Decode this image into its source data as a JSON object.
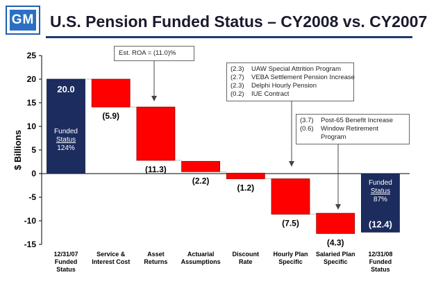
{
  "logo_text": "GM",
  "title": "U.S. Pension Funded Status – CY2008 vs. CY2007",
  "chart_data": {
    "type": "bar",
    "subtype": "waterfall",
    "ylabel": "$ Billions",
    "ylim": [
      -15,
      25
    ],
    "yticks": [
      25,
      20,
      15,
      10,
      5,
      0,
      -5,
      -10,
      -15
    ],
    "grid": false,
    "colors": {
      "total": "#1c2c5e",
      "step": "#ff0000"
    },
    "categories": [
      [
        "12/31/07",
        "Funded",
        "Status"
      ],
      [
        "Service &",
        "Interest Cost"
      ],
      [
        "Asset",
        "Returns"
      ],
      [
        "Actuarial",
        "Assumptions"
      ],
      [
        "Discount",
        "Rate"
      ],
      [
        "Hourly Plan",
        "Specific"
      ],
      [
        "Salaried Plan",
        "Specific"
      ],
      [
        "12/31/08",
        "Funded",
        "Status"
      ]
    ],
    "bars": [
      {
        "kind": "total",
        "start": 0,
        "end": 20.0,
        "label": "20.0",
        "inner_text": [
          "Funded",
          "Status",
          "124%"
        ]
      },
      {
        "kind": "step",
        "start": 20.0,
        "end": 14.1,
        "label": "(5.9)"
      },
      {
        "kind": "step",
        "start": 14.1,
        "end": 2.8,
        "label": "(11.3)"
      },
      {
        "kind": "step",
        "start": 2.6,
        "end": 0.4,
        "label": "(2.2)"
      },
      {
        "kind": "step",
        "start": 0.1,
        "end": -1.1,
        "label": "(1.2)"
      },
      {
        "kind": "step",
        "start": -1.1,
        "end": -8.6,
        "label": "(7.5)"
      },
      {
        "kind": "step",
        "start": -8.4,
        "end": -12.7,
        "label": "(4.3)"
      },
      {
        "kind": "total",
        "start": 0,
        "end": -12.4,
        "label": "(12.4)",
        "inner_text": [
          "Funded",
          "Status",
          "87%"
        ]
      }
    ],
    "annotations": [
      {
        "text": "Est. ROA = (11.0)%"
      },
      {
        "items": [
          {
            "value": "(2.3)",
            "text": "UAW Special Attrition Program"
          },
          {
            "value": "(2.7)",
            "text": "VEBA Settlement Pension Increase"
          },
          {
            "value": "(2.3)",
            "text": "Delphi Hourly Pension"
          },
          {
            "value": "(0.2)",
            "text": "IUE Contract"
          }
        ]
      },
      {
        "items": [
          {
            "value": "(3.7)",
            "text": "Post-65 Benefit Increase"
          },
          {
            "value": "(0.6)",
            "text": "Window Retirement Program"
          }
        ]
      }
    ]
  }
}
